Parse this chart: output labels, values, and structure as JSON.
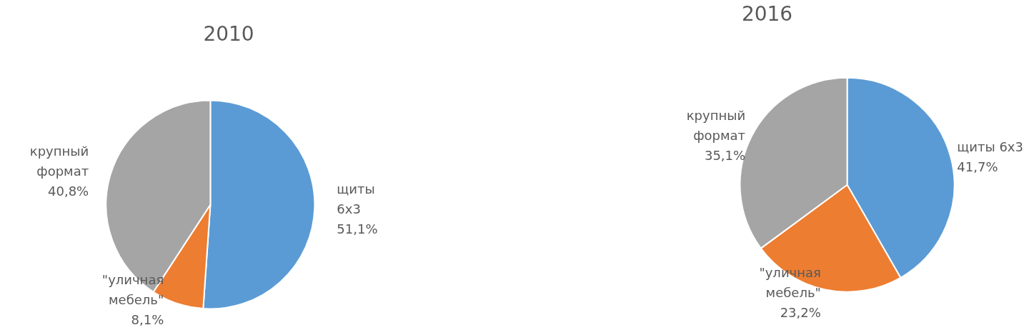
{
  "chart_data": [
    {
      "type": "pie",
      "title": "2010",
      "categories": [
        "щиты 6х3",
        "\"уличная мебель\"",
        "крупный формат"
      ],
      "values": [
        51.1,
        8.1,
        40.8
      ],
      "value_labels": [
        "51,1%",
        "8,1%",
        "40,8%"
      ],
      "colors": [
        "#5b9bd5",
        "#ed7d31",
        "#a5a5a5"
      ],
      "data_labels": true,
      "legend": false
    },
    {
      "type": "pie",
      "title": "2016",
      "categories": [
        "щиты 6х3",
        "\"уличная мебель\"",
        "крупный формат"
      ],
      "values": [
        41.7,
        23.2,
        35.1
      ],
      "value_labels": [
        "41,7%",
        "23,2%",
        "35,1%"
      ],
      "colors": [
        "#5b9bd5",
        "#ed7d31",
        "#a5a5a5"
      ],
      "data_labels": true,
      "legend": false
    }
  ]
}
